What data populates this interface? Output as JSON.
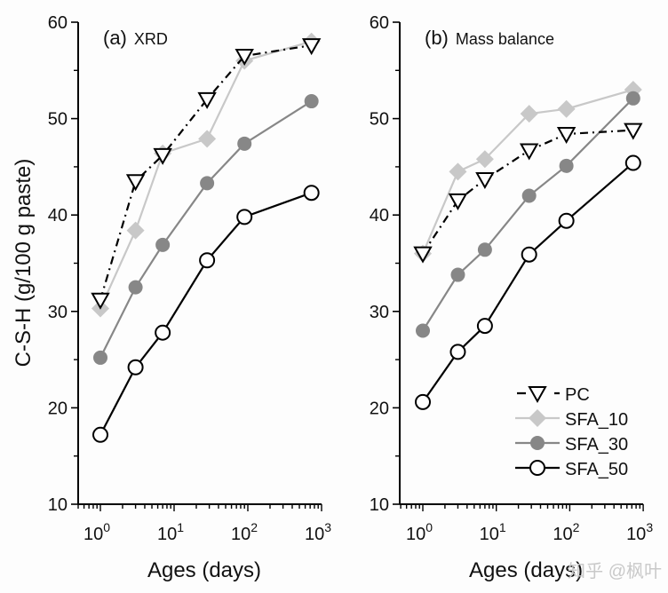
{
  "chart_data": [
    {
      "type": "line",
      "panel_label": "(a)",
      "title": "XRD",
      "xlabel": "Ages (days)",
      "ylabel": "C-S-H (g/100 g paste)",
      "xscale": "log",
      "xlim": [
        0.5,
        1000
      ],
      "ylim": [
        10,
        60
      ],
      "x_ticks": [
        1,
        10,
        100,
        1000
      ],
      "x_tick_labels": [
        {
          "base": "10",
          "exp": "0"
        },
        {
          "base": "10",
          "exp": "1"
        },
        {
          "base": "10",
          "exp": "2"
        },
        {
          "base": "10",
          "exp": "3"
        }
      ],
      "y_ticks": [
        10,
        20,
        30,
        40,
        50,
        60
      ],
      "y_tick_labels": [
        "10",
        "20",
        "30",
        "40",
        "50",
        "60"
      ],
      "grid": false,
      "x": [
        1,
        3,
        7,
        28,
        90,
        730
      ],
      "series": [
        {
          "name": "PC",
          "marker": "triangle-down-open",
          "line": "dash-dot",
          "color": "#000000",
          "values": [
            31.2,
            43.5,
            46.2,
            52.0,
            56.5,
            57.6
          ]
        },
        {
          "name": "SFA_10",
          "marker": "diamond-filled",
          "line": "solid",
          "color": "#c8c8c8",
          "values": [
            30.3,
            38.4,
            46.4,
            47.9,
            56.0,
            58.0
          ]
        },
        {
          "name": "SFA_30",
          "marker": "circle-filled",
          "line": "solid",
          "color": "#878787",
          "values": [
            25.2,
            32.5,
            36.9,
            43.3,
            47.4,
            51.8
          ]
        },
        {
          "name": "SFA_50",
          "marker": "circle-open",
          "line": "solid",
          "color": "#000000",
          "values": [
            17.2,
            24.2,
            27.8,
            35.3,
            39.8,
            42.3
          ]
        }
      ]
    },
    {
      "type": "line",
      "panel_label": "(b)",
      "title": "Mass balance",
      "xlabel": "Ages (days)",
      "ylabel": "",
      "xscale": "log",
      "xlim": [
        0.5,
        1000
      ],
      "ylim": [
        10,
        60
      ],
      "x_ticks": [
        1,
        10,
        100,
        1000
      ],
      "x_tick_labels": [
        {
          "base": "10",
          "exp": "0"
        },
        {
          "base": "10",
          "exp": "1"
        },
        {
          "base": "10",
          "exp": "2"
        },
        {
          "base": "10",
          "exp": "3"
        }
      ],
      "y_ticks": [
        10,
        20,
        30,
        40,
        50,
        60
      ],
      "y_tick_labels": [
        "10",
        "20",
        "30",
        "40",
        "50",
        "60"
      ],
      "grid": false,
      "legend": "bottom-right",
      "x": [
        1,
        3,
        7,
        28,
        90,
        730
      ],
      "series": [
        {
          "name": "PC",
          "marker": "triangle-down-open",
          "line": "dash-dot",
          "color": "#000000",
          "values": [
            36.0,
            41.5,
            43.7,
            46.7,
            48.4,
            48.8
          ]
        },
        {
          "name": "SFA_10",
          "marker": "diamond-filled",
          "line": "solid",
          "color": "#c8c8c8",
          "values": [
            36.0,
            44.5,
            45.8,
            50.5,
            51.0,
            53.0
          ]
        },
        {
          "name": "SFA_30",
          "marker": "circle-filled",
          "line": "solid",
          "color": "#878787",
          "values": [
            28.0,
            33.8,
            36.4,
            42.0,
            45.1,
            52.1
          ]
        },
        {
          "name": "SFA_50",
          "marker": "circle-open",
          "line": "solid",
          "color": "#000000",
          "values": [
            20.6,
            25.8,
            28.5,
            35.9,
            39.4,
            45.4
          ]
        }
      ]
    }
  ],
  "watermark": "知乎 @枫叶"
}
